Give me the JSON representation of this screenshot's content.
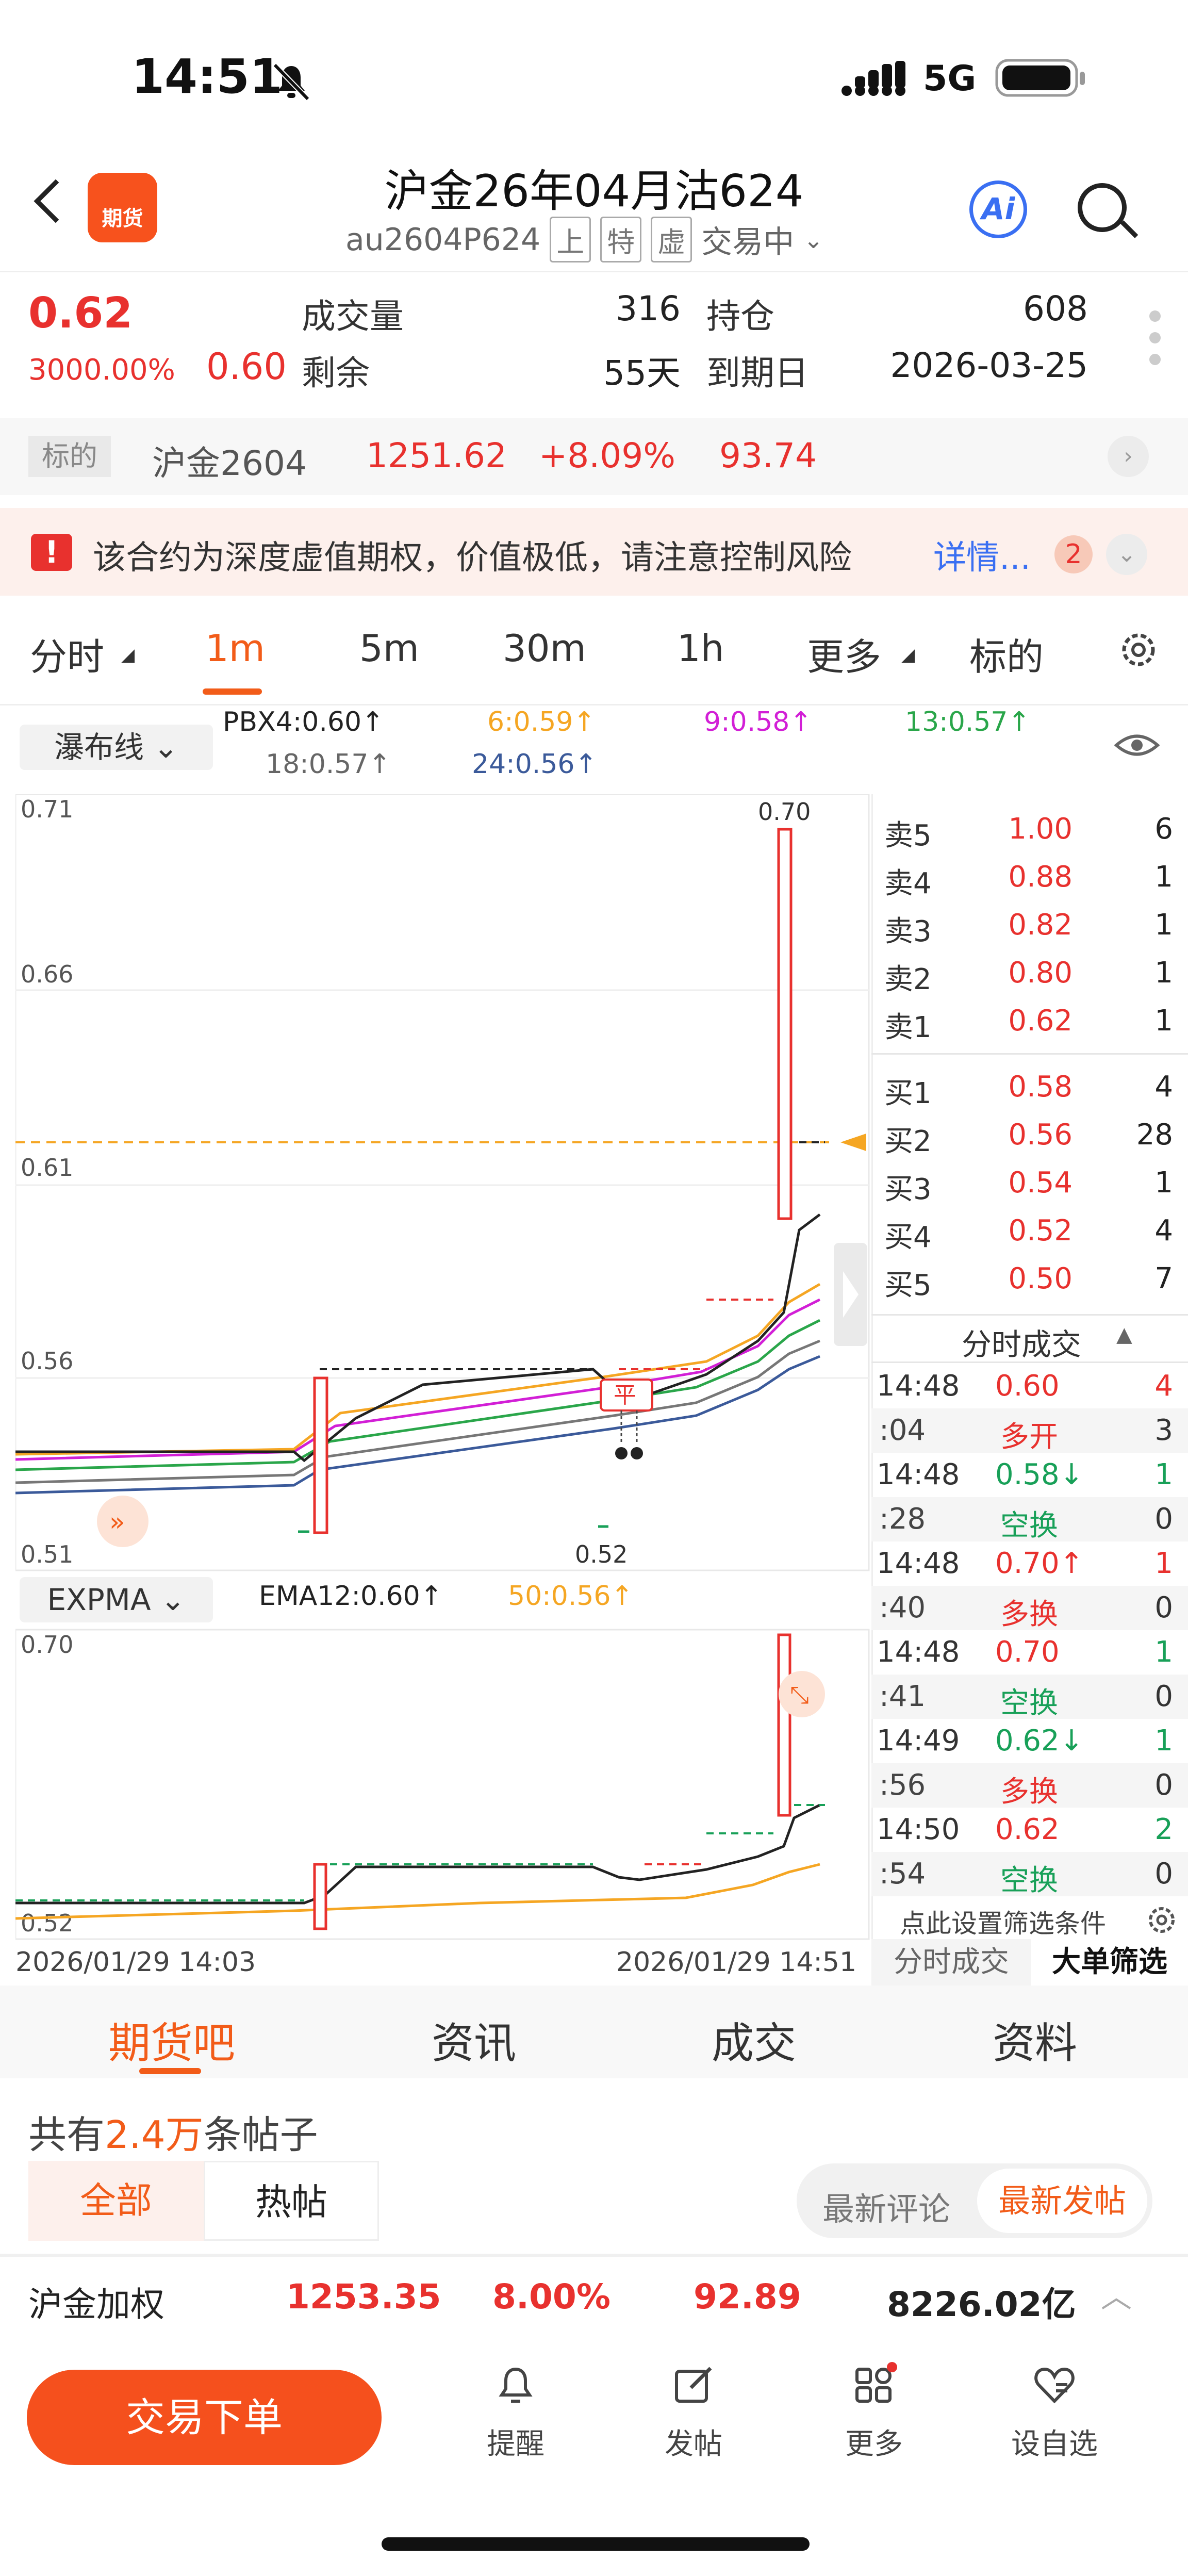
{
  "status": {
    "time": "14:51",
    "network": "5G"
  },
  "header": {
    "title": "沪金26年04月沽624",
    "code": "au2604P624",
    "tags": [
      "上",
      "特",
      "虚"
    ],
    "state": "交易中",
    "logo_text": "期货",
    "ai_label": "Ai"
  },
  "quote": {
    "price": "0.62",
    "change_pct": "3000.00%",
    "prev": "0.60",
    "volume_label": "成交量",
    "volume": "316",
    "oi_label": "持仓",
    "oi": "608",
    "remain_label": "剩余",
    "remain": "55天",
    "expiry_label": "到期日",
    "expiry": "2026-03-25"
  },
  "underlying": {
    "tag": "标的",
    "name": "沪金2604",
    "price": "1251.62",
    "pct": "+8.09%",
    "chg": "93.74"
  },
  "warning": {
    "text": "该合约为深度虚值期权，价值极低，请注意控制风险",
    "link": "详情...",
    "count": "2"
  },
  "tabs": [
    "分时",
    "1m",
    "5m",
    "30m",
    "1h",
    "更多",
    "标的"
  ],
  "indicators": {
    "main_select": "瀑布线",
    "pbx": [
      "PBX4:0.60↑",
      "6:0.59↑",
      "9:0.58↑",
      "13:0.57↑",
      "18:0.57↑",
      "24:0.56↑"
    ],
    "sub_select": "EXPMA",
    "ema": [
      "EMA12:0.60↑",
      "50:0.56↑"
    ]
  },
  "colors": {
    "accent": "#f25c19",
    "up": "#e8312e",
    "down": "#18a058",
    "pbx4": "#222222",
    "pbx6": "#f5a623",
    "pbx9": "#d21fd6",
    "pbx13": "#2aa64a",
    "pbx18": "#777777",
    "pbx24": "#3b5a9a"
  },
  "chart": {
    "upper_labels": [
      "0.71",
      "0.66",
      "0.61",
      "0.56",
      "0.51"
    ],
    "low_marker": "0.52",
    "high_marker": "0.70",
    "lower_labels": [
      "0.70",
      "0.52"
    ],
    "close_badge": "平",
    "time_start": "2026/01/29 14:03",
    "time_end": "2026/01/29 14:51"
  },
  "orderbook": {
    "asks": [
      {
        "label": "卖5",
        "price": "1.00",
        "vol": "6"
      },
      {
        "label": "卖4",
        "price": "0.88",
        "vol": "1"
      },
      {
        "label": "卖3",
        "price": "0.82",
        "vol": "1"
      },
      {
        "label": "卖2",
        "price": "0.80",
        "vol": "1"
      },
      {
        "label": "卖1",
        "price": "0.62",
        "vol": "1"
      }
    ],
    "bids": [
      {
        "label": "买1",
        "price": "0.58",
        "vol": "4"
      },
      {
        "label": "买2",
        "price": "0.56",
        "vol": "28"
      },
      {
        "label": "买3",
        "price": "0.54",
        "vol": "1"
      },
      {
        "label": "买4",
        "price": "0.52",
        "vol": "4"
      },
      {
        "label": "买5",
        "price": "0.50",
        "vol": "7"
      }
    ]
  },
  "ticks": {
    "header": "分时成交",
    "rows": [
      {
        "time": "14:48",
        "price": "0.60",
        "vol": "4",
        "sec": ":04",
        "type": "多开",
        "count": "3"
      },
      {
        "time": "14:48",
        "price": "0.58↓",
        "vol": "1",
        "sec": ":28",
        "type": "空换",
        "count": "0"
      },
      {
        "time": "14:48",
        "price": "0.70↑",
        "vol": "1",
        "sec": ":40",
        "type": "多换",
        "count": "0"
      },
      {
        "time": "14:48",
        "price": "0.70",
        "vol": "1",
        "sec": ":41",
        "type": "空换",
        "count": "0"
      },
      {
        "time": "14:49",
        "price": "0.62↓",
        "vol": "1",
        "sec": ":56",
        "type": "多换",
        "count": "0"
      },
      {
        "time": "14:50",
        "price": "0.62",
        "vol": "2",
        "sec": ":54",
        "type": "空换",
        "count": "0"
      }
    ],
    "filter_hint": "点此设置筛选条件",
    "tab_left": "分时成交",
    "tab_right": "大单筛选"
  },
  "section_tabs": [
    "期货吧",
    "资讯",
    "成交",
    "资料"
  ],
  "posts": {
    "prefix": "共有",
    "count": "2.4万",
    "suffix": "条帖子",
    "filter_all": "全部",
    "filter_hot": "热帖",
    "sort_latest_comment": "最新评论",
    "sort_latest_post": "最新发帖"
  },
  "index_bar": {
    "name": "沪金加权",
    "price": "1253.35",
    "pct": "8.00%",
    "chg": "92.89",
    "turnover": "8226.02亿"
  },
  "bottom_nav": {
    "trade": "交易下单",
    "items": [
      "提醒",
      "发帖",
      "更多",
      "设自选"
    ]
  }
}
